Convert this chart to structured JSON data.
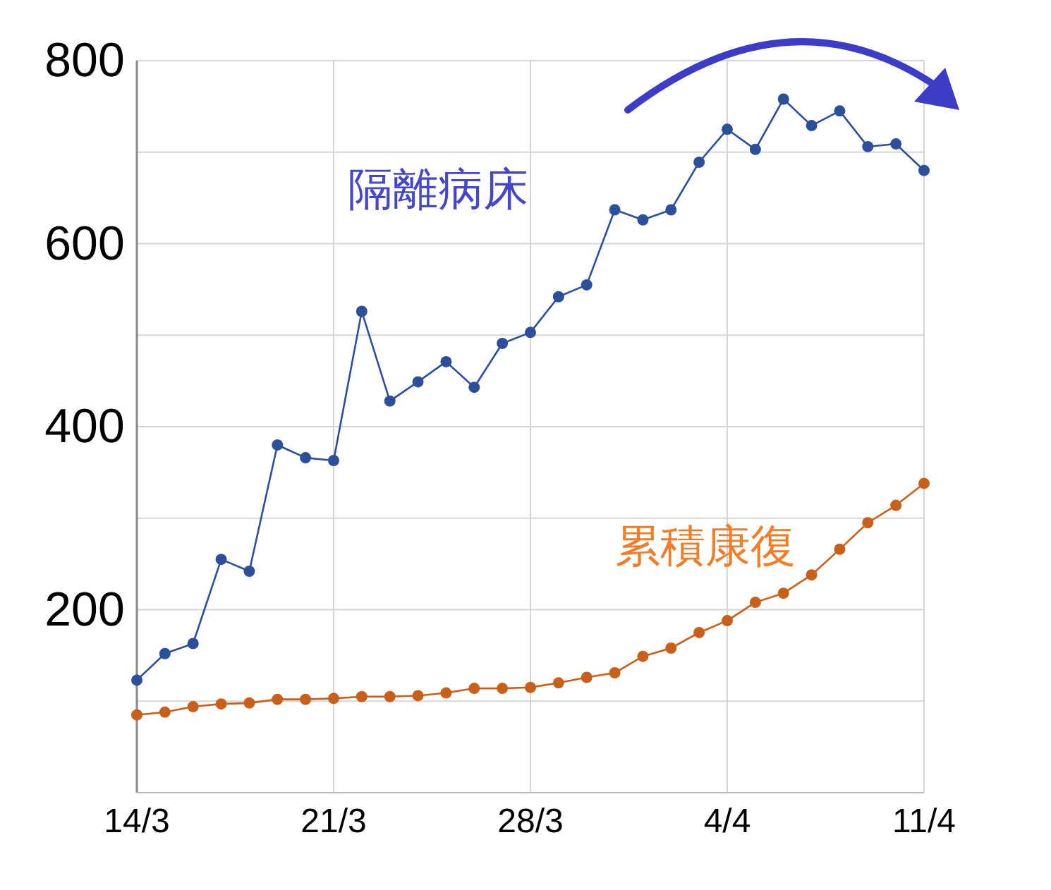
{
  "chart_data": {
    "type": "line",
    "categories": [
      "14/3",
      null,
      null,
      null,
      null,
      null,
      null,
      "21/3",
      null,
      null,
      null,
      null,
      null,
      null,
      "28/3",
      null,
      null,
      null,
      null,
      null,
      null,
      "4/4",
      null,
      null,
      null,
      null,
      null,
      null,
      "11/4"
    ],
    "series": [
      {
        "name": "隔離病床",
        "color": "#2b4f9a",
        "values": [
          123,
          152,
          163,
          255,
          242,
          380,
          366,
          363,
          526,
          428,
          449,
          471,
          443,
          491,
          503,
          542,
          555,
          637,
          626,
          637,
          689,
          725,
          703,
          758,
          729,
          745,
          706,
          709,
          680
        ]
      },
      {
        "name": "累積康復",
        "color": "#c8601a",
        "values": [
          85,
          88,
          94,
          97,
          98,
          102,
          102,
          103,
          105,
          105,
          106,
          109,
          114,
          114,
          115,
          120,
          126,
          131,
          149,
          158,
          175,
          188,
          208,
          218,
          238,
          266,
          295,
          314,
          338
        ]
      }
    ],
    "ylim": [
      0,
      800
    ],
    "yticks": [
      {
        "value": 100,
        "label": null
      },
      200,
      {
        "value": 300,
        "label": null
      },
      400,
      {
        "value": 500,
        "label": null
      },
      600,
      {
        "value": 700,
        "label": null
      },
      800
    ],
    "grid": true,
    "marker": "circle",
    "line_style": "solid"
  }
}
